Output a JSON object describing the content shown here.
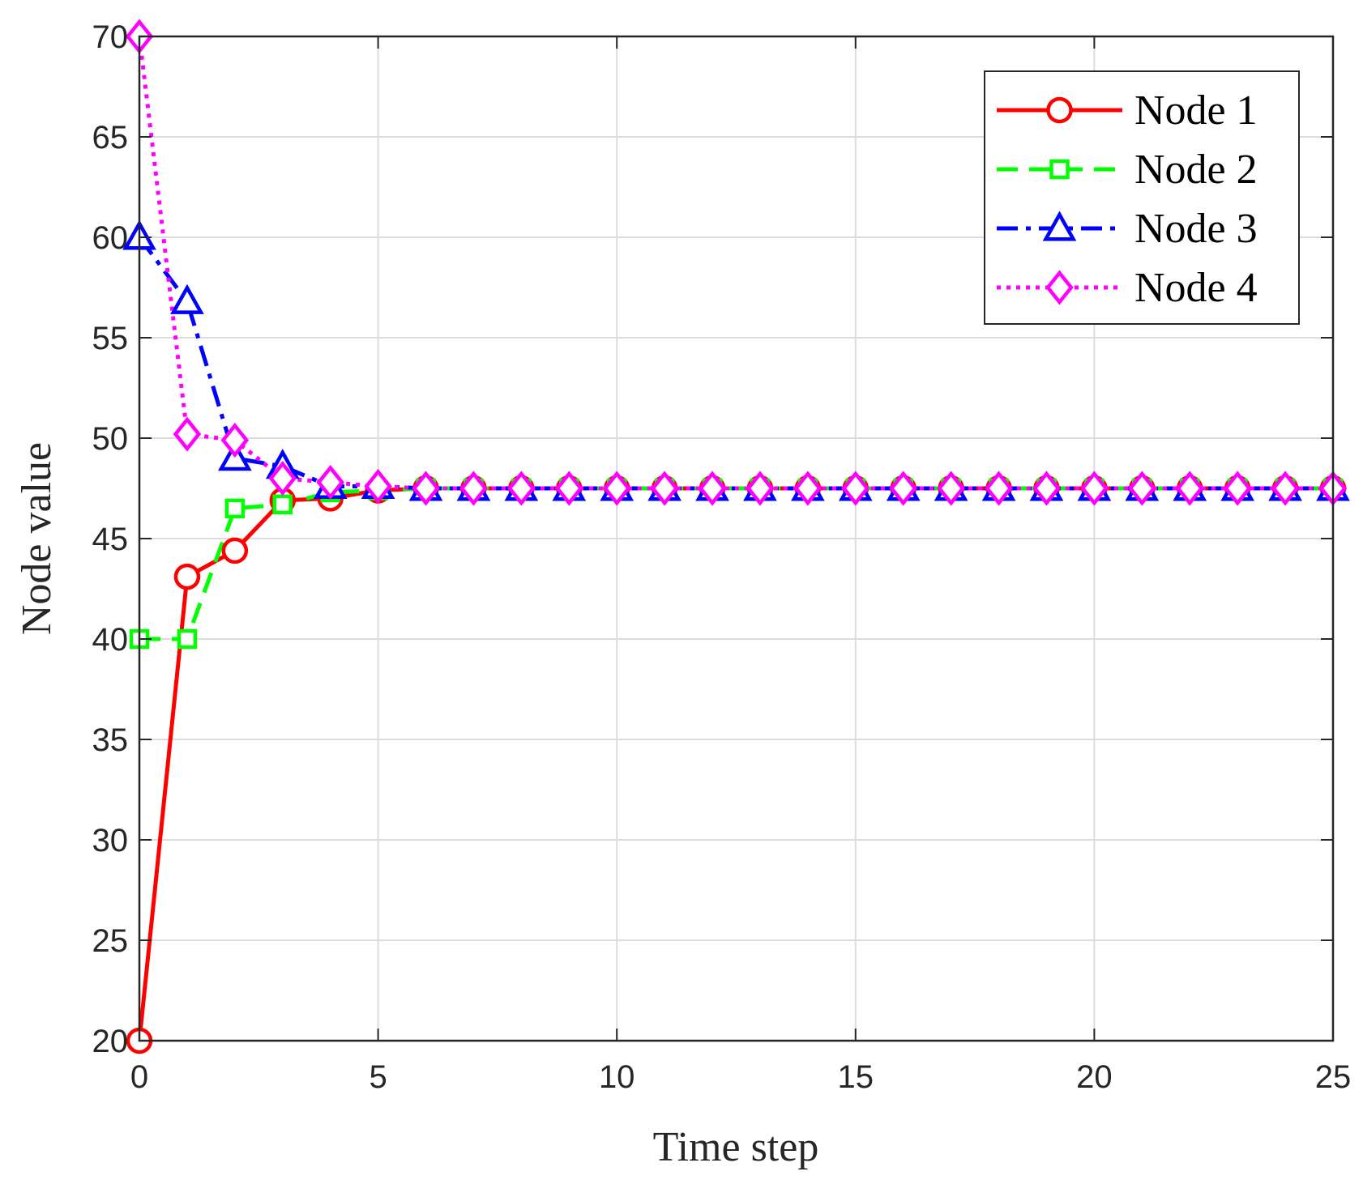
{
  "chart_data": {
    "type": "line",
    "title": "",
    "xlabel": "Time step",
    "ylabel": "Node value",
    "xlim": [
      0,
      25
    ],
    "ylim": [
      20,
      70
    ],
    "xticks": [
      0,
      5,
      10,
      15,
      20,
      25
    ],
    "yticks": [
      20,
      25,
      30,
      35,
      40,
      45,
      50,
      55,
      60,
      65,
      70
    ],
    "grid": true,
    "legend_position": "top-right",
    "x": [
      0,
      1,
      2,
      3,
      4,
      5,
      6,
      7,
      8,
      9,
      10,
      11,
      12,
      13,
      14,
      15,
      16,
      17,
      18,
      19,
      20,
      21,
      22,
      23,
      24,
      25
    ],
    "series": [
      {
        "name": "Node 1",
        "color": "#ff0000",
        "line_style": "solid",
        "marker": "circle",
        "values": [
          20,
          43.1,
          44.4,
          46.9,
          47.0,
          47.4,
          47.5,
          47.5,
          47.5,
          47.5,
          47.5,
          47.5,
          47.5,
          47.5,
          47.5,
          47.5,
          47.5,
          47.5,
          47.5,
          47.5,
          47.5,
          47.5,
          47.5,
          47.5,
          47.5,
          47.5
        ]
      },
      {
        "name": "Node 2",
        "color": "#00ff00",
        "line_style": "dashed",
        "marker": "square",
        "values": [
          40,
          40,
          46.5,
          46.7,
          47.3,
          47.4,
          47.5,
          47.5,
          47.5,
          47.5,
          47.5,
          47.5,
          47.5,
          47.5,
          47.5,
          47.5,
          47.5,
          47.5,
          47.5,
          47.5,
          47.5,
          47.5,
          47.5,
          47.5,
          47.5,
          47.5
        ]
      },
      {
        "name": "Node 3",
        "color": "#0000ff",
        "line_style": "dash-dot",
        "marker": "triangle",
        "values": [
          60,
          56.8,
          49.0,
          48.6,
          47.6,
          47.6,
          47.5,
          47.5,
          47.5,
          47.5,
          47.5,
          47.5,
          47.5,
          47.5,
          47.5,
          47.5,
          47.5,
          47.5,
          47.5,
          47.5,
          47.5,
          47.5,
          47.5,
          47.5,
          47.5,
          47.5
        ]
      },
      {
        "name": "Node 4",
        "color": "#ff00ff",
        "line_style": "dotted",
        "marker": "diamond",
        "values": [
          70,
          50.2,
          49.9,
          48.0,
          47.8,
          47.6,
          47.5,
          47.5,
          47.5,
          47.5,
          47.5,
          47.5,
          47.5,
          47.5,
          47.5,
          47.5,
          47.5,
          47.5,
          47.5,
          47.5,
          47.5,
          47.5,
          47.5,
          47.5,
          47.5,
          47.5
        ]
      }
    ]
  }
}
